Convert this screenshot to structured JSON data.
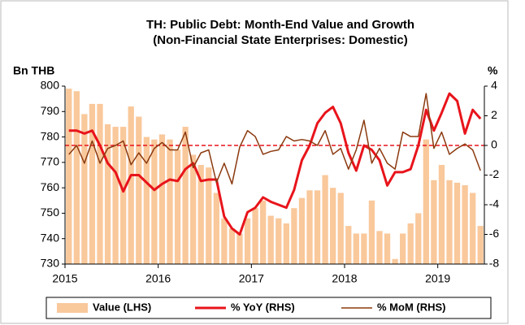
{
  "chart_data": {
    "type": "bar-line-combo",
    "title": "TH: Public Debt: Month-End Value and Growth",
    "subtitle": "(Non-Financial State Enterprises: Domestic)",
    "y_label": "Bn THB",
    "y2_label": "%",
    "categories": [
      "2015",
      null,
      null,
      null,
      null,
      null,
      null,
      null,
      null,
      null,
      null,
      null,
      "2016",
      null,
      null,
      null,
      null,
      null,
      null,
      null,
      null,
      null,
      null,
      null,
      "2017",
      null,
      null,
      null,
      null,
      null,
      null,
      null,
      null,
      null,
      null,
      null,
      "2018",
      null,
      null,
      null,
      null,
      null,
      null,
      null,
      null,
      null,
      null,
      null,
      "2019",
      null,
      null,
      null,
      null,
      null
    ],
    "series": [
      {
        "name": "Value (LHS)",
        "kind": "bar",
        "axis": "y",
        "color": "#f9c89b",
        "values": [
          799,
          798,
          789,
          793,
          793,
          785,
          784,
          784,
          792,
          788,
          780,
          779,
          781,
          779,
          775,
          784,
          773,
          769,
          768,
          758,
          748,
          744,
          742,
          748,
          752,
          755,
          749,
          748,
          746,
          752,
          756,
          759,
          759,
          765,
          760,
          758,
          745,
          742,
          742,
          755,
          743,
          742,
          732,
          742,
          746,
          750,
          779,
          763,
          769,
          763,
          762,
          761,
          758,
          745
        ]
      },
      {
        "name": "% YoY (RHS)",
        "kind": "line",
        "axis": "y2",
        "color": "#e8141b",
        "width": 3,
        "values": [
          1.0,
          1.0,
          0.8,
          1.0,
          0.0,
          -1.2,
          -1.8,
          -3.1,
          -2.0,
          -2.0,
          -2.5,
          -3.0,
          -2.6,
          -2.3,
          -2.4,
          -1.6,
          -1.2,
          -2.4,
          -2.3,
          -2.3,
          -4.8,
          -5.6,
          -6.0,
          -4.5,
          -4.2,
          -3.5,
          -3.8,
          -4.0,
          -4.2,
          -3.0,
          -1.0,
          0.0,
          1.5,
          2.2,
          2.6,
          1.5,
          -0.5,
          -1.7,
          0.0,
          -0.3,
          -1.0,
          -2.7,
          -1.8,
          -1.8,
          -1.6,
          0.0,
          2.4,
          1.0,
          2.2,
          3.5,
          3.0,
          0.8,
          2.4,
          1.8
        ]
      },
      {
        "name": "% MoM (RHS)",
        "kind": "line",
        "axis": "y2",
        "color": "#8b3a0f",
        "width": 1.5,
        "values": [
          -0.6,
          0.0,
          -1.2,
          0.3,
          -1.2,
          -0.2,
          0.0,
          0.3,
          -1.3,
          -0.5,
          -1.2,
          -0.2,
          0.2,
          -0.3,
          -0.3,
          0.9,
          -1.5,
          -0.5,
          -0.3,
          -2.5,
          -1.2,
          -2.6,
          -0.1,
          1.0,
          0.6,
          -0.6,
          -0.4,
          -0.3,
          0.6,
          0.3,
          0.4,
          0.3,
          0.0,
          1.0,
          -0.6,
          -0.2,
          -1.6,
          -0.3,
          1.7,
          -1.2,
          -0.2,
          -1.2,
          -1.6,
          0.9,
          0.6,
          0.6,
          3.5,
          -0.2,
          0.9,
          -0.6,
          -0.2,
          0.1,
          -0.3,
          -1.7
        ]
      }
    ],
    "ylim": [
      730,
      800
    ],
    "yticks": [
      730,
      740,
      750,
      760,
      770,
      780,
      790,
      800
    ],
    "y2lim": [
      -8,
      4
    ],
    "y2ticks": [
      -8,
      -6,
      -4,
      -2,
      0,
      2,
      4
    ],
    "y2_reference": {
      "value": 0,
      "color": "#e8141b",
      "dashed": true
    },
    "legend": "bottom"
  }
}
